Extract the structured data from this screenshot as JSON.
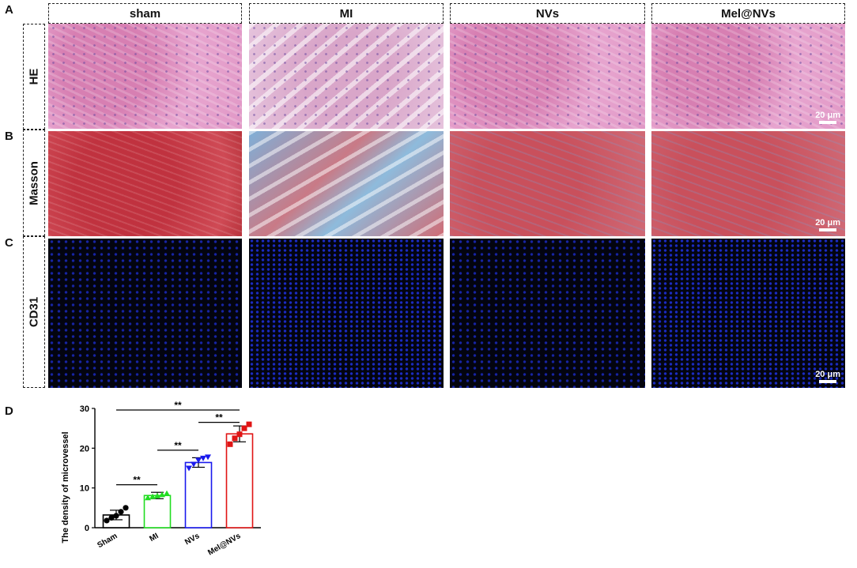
{
  "panels": {
    "A": "A",
    "B": "B",
    "C": "C",
    "D": "D"
  },
  "columns": [
    "sham",
    "MI",
    "NVs",
    "Mel@NVs"
  ],
  "rows": [
    "HE",
    "Masson",
    "CD31"
  ],
  "scale_bar": "20 μm",
  "chart_data": {
    "type": "bar",
    "categories": [
      "Sham",
      "MI",
      "NVs",
      "Mel@NVs"
    ],
    "values": [
      3.2,
      8.1,
      16.4,
      23.6
    ],
    "errors": [
      1.2,
      0.8,
      1.2,
      2.0
    ],
    "points": [
      [
        1.8,
        2.5,
        3.0,
        4.0,
        5.0
      ],
      [
        7.5,
        7.8,
        8.0,
        8.3,
        8.6
      ],
      [
        15.0,
        16.0,
        17.0,
        17.5,
        17.8
      ],
      [
        21.0,
        22.5,
        23.5,
        25.0,
        26.0
      ]
    ],
    "colors": [
      "#000000",
      "#22dd22",
      "#1a1aee",
      "#e01515"
    ],
    "ylabel": "The density of microvessel",
    "ylim": [
      0,
      30
    ],
    "yticks": [
      0,
      10,
      20,
      30
    ],
    "significance": "**",
    "comparisons": [
      [
        "Sham",
        "MI"
      ],
      [
        "MI",
        "NVs"
      ],
      [
        "NVs",
        "Mel@NVs"
      ],
      [
        "Sham",
        "Mel@NVs"
      ]
    ]
  }
}
